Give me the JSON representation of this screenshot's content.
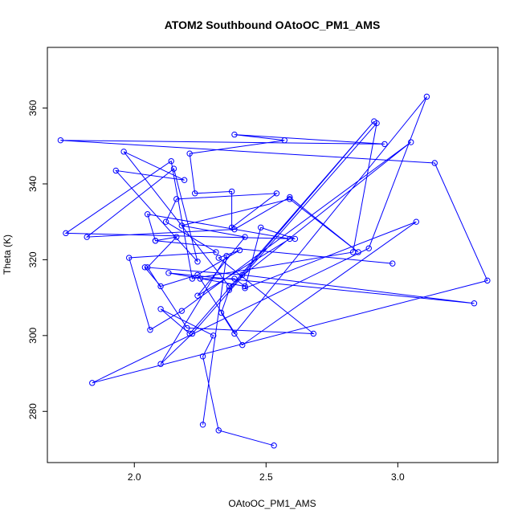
{
  "chart_data": {
    "type": "line",
    "title": "ATOM2 Southbound OAtoOC_PM1_AMS",
    "xlabel": "OAtoOC_PM1_AMS",
    "ylabel": "Theta (K)",
    "xlim": [
      1.67,
      3.38
    ],
    "ylim": [
      266.5,
      376.0
    ],
    "xticks": [
      2.0,
      2.5,
      3.0
    ],
    "yticks": [
      280,
      300,
      320,
      340,
      360
    ],
    "xtick_labels": [
      "2.0",
      "2.5",
      "3.0"
    ],
    "ytick_labels": [
      "280",
      "300",
      "320",
      "340",
      "360"
    ],
    "grid": false,
    "series_color": "#0000ff",
    "series": [
      {
        "marker": "open-circle",
        "x": [
          2.53,
          2.32,
          2.26,
          2.3,
          2.1,
          2.21,
          2.91,
          2.36,
          2.33,
          2.38,
          3.11,
          2.89,
          1.84,
          3.34,
          3.14,
          1.72,
          2.95,
          2.38,
          2.57,
          2.21,
          2.23,
          2.37,
          2.37,
          2.54,
          2.16,
          2.12,
          2.31,
          1.98,
          2.06,
          2.18,
          3.05,
          2.36,
          1.96,
          2.19,
          1.93,
          2.24,
          2.15,
          1.82,
          2.38,
          2.59,
          2.85,
          2.59,
          2.18,
          2.42,
          2.24,
          2.59,
          2.05,
          2.08,
          2.98,
          2.08,
          2.16,
          2.05,
          2.2,
          2.68,
          2.32,
          2.4,
          2.24,
          2.1,
          2.04,
          2.41,
          3.29,
          2.13,
          2.42,
          2.38,
          2.25,
          2.41,
          3.07,
          2.42,
          2.48,
          2.61,
          1.74,
          2.14,
          2.22,
          2.83,
          2.92,
          2.22,
          2.1,
          2.35,
          2.26
        ],
        "y": [
          271.0,
          275.0,
          294.5,
          300.0,
          307.0,
          300.5,
          356.5,
          312.0,
          306.0,
          300.5,
          363.0,
          323.0,
          287.5,
          314.5,
          345.5,
          351.5,
          350.5,
          353.0,
          351.5,
          348.0,
          337.5,
          338.0,
          328.5,
          337.5,
          336.0,
          330.0,
          322.0,
          320.5,
          301.5,
          306.5,
          351.0,
          313.0,
          348.5,
          341.0,
          343.5,
          319.5,
          344.0,
          326.0,
          328.0,
          336.5,
          322.0,
          336.0,
          329.0,
          326.0,
          310.5,
          325.5,
          332.0,
          325.0,
          319.0,
          325.0,
          326.0,
          318.0,
          302.0,
          300.5,
          320.5,
          322.5,
          316.0,
          313.0,
          318.0,
          316.0,
          308.5,
          316.5,
          313.0,
          315.0,
          315.0,
          297.5,
          330.0,
          312.5,
          328.5,
          325.5,
          327.0,
          346.0,
          315.0,
          322.0,
          356.0,
          300.5,
          292.5,
          321.0,
          276.5
        ]
      }
    ]
  }
}
